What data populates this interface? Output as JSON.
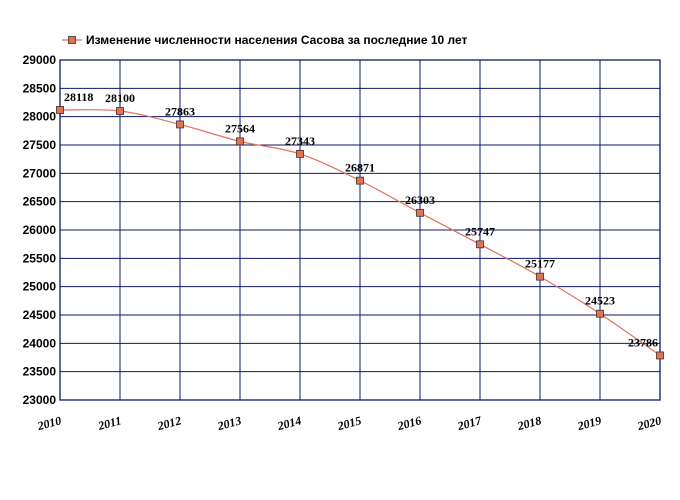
{
  "chart_data": {
    "type": "line",
    "title": "",
    "xlabel": "",
    "ylabel": "",
    "categories": [
      "2010",
      "2011",
      "2012",
      "2013",
      "2014",
      "2015",
      "2016",
      "2017",
      "2018",
      "2019",
      "2020"
    ],
    "series": [
      {
        "name": "Изменение численности населения Сасова за последние 10 лет",
        "values": [
          28118,
          28100,
          27863,
          27564,
          27343,
          26871,
          26303,
          25747,
          25177,
          24523,
          23786
        ],
        "data_labels": [
          "28118",
          "28100",
          "27863",
          "27564",
          "27343",
          "26871",
          "26303",
          "25747",
          "25177",
          "24523",
          "23786"
        ]
      }
    ],
    "y_ticks": [
      "23000",
      "23500",
      "24000",
      "24500",
      "25000",
      "25500",
      "26000",
      "26500",
      "27000",
      "27500",
      "28000",
      "28500",
      "29000"
    ],
    "ylim": [
      23000,
      29000
    ],
    "grid": true,
    "legend": "top-left",
    "colors": {
      "line": "#e07060",
      "marker_fill": "#e8704e",
      "marker_stroke": "#333333",
      "grid": "#0a1a6a",
      "axis": "#0a1a6a"
    }
  }
}
